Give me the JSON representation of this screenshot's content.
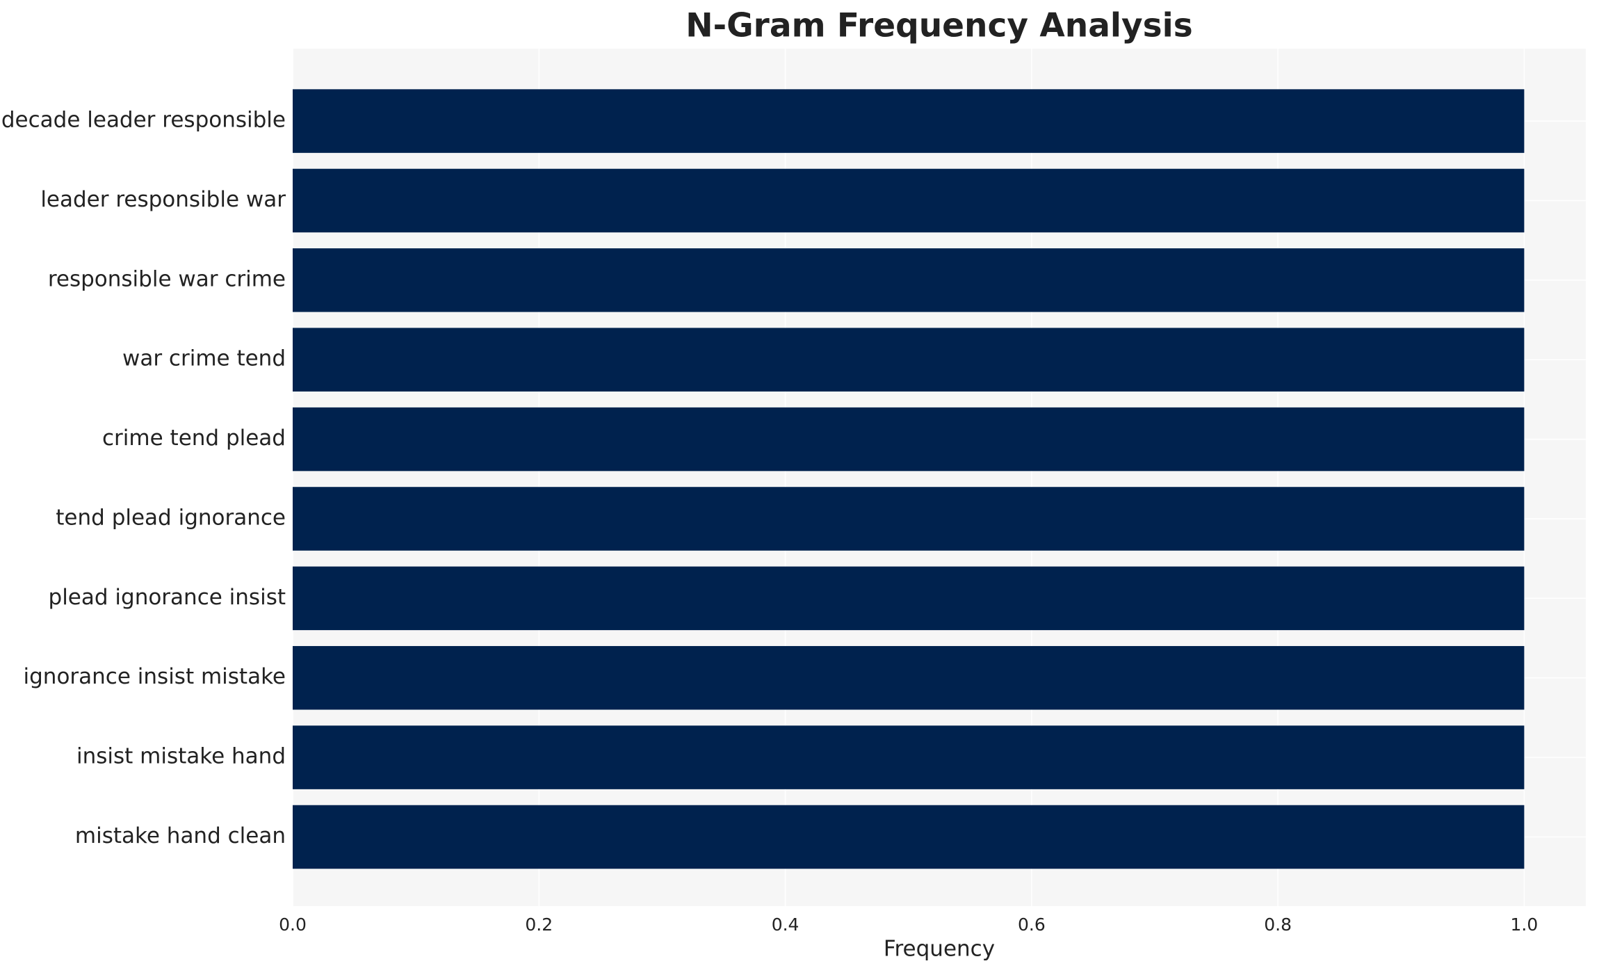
{
  "chart_data": {
    "type": "bar",
    "orientation": "horizontal",
    "title": "N-Gram Frequency Analysis",
    "x_label": "Frequency",
    "categories": [
      "decade leader responsible",
      "leader responsible war",
      "responsible war crime",
      "war crime tend",
      "crime tend plead",
      "tend plead ignorance",
      "plead ignorance insist",
      "ignorance insist mistake",
      "insist mistake hand",
      "mistake hand clean"
    ],
    "values": [
      1,
      1,
      1,
      1,
      1,
      1,
      1,
      1,
      1,
      1
    ],
    "color": "#00224e",
    "xlim": [
      0,
      1.05
    ],
    "xticks": [
      {
        "value": 0,
        "label": "0.0"
      },
      0.2,
      0.4,
      0.6,
      0.8,
      {
        "value": 1,
        "label": "1.0"
      }
    ],
    "grid": true
  }
}
